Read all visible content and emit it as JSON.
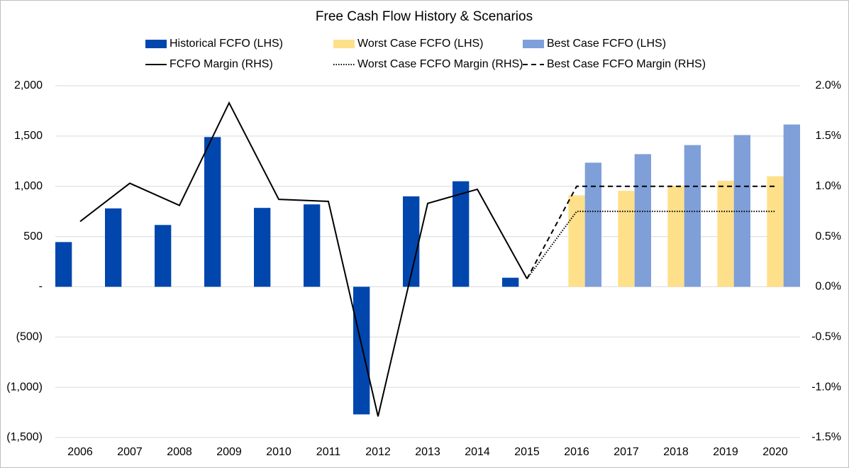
{
  "chart_data": {
    "type": "bar",
    "title": "Free Cash Flow History & Scenarios",
    "categories": [
      "2006",
      "2007",
      "2008",
      "2009",
      "2010",
      "2011",
      "2012",
      "2013",
      "2014",
      "2015",
      "2016",
      "2017",
      "2018",
      "2019",
      "2020"
    ],
    "series": [
      {
        "name": "Historical FCFO (LHS)",
        "type": "bar",
        "color": "#0046ad",
        "values": [
          445,
          780,
          615,
          1490,
          785,
          820,
          -1270,
          900,
          1050,
          90,
          null,
          null,
          null,
          null,
          null
        ]
      },
      {
        "name": "Worst Case FCFO (LHS)",
        "type": "bar",
        "color": "#ffe08a",
        "values": [
          null,
          null,
          null,
          null,
          null,
          null,
          null,
          null,
          null,
          null,
          910,
          955,
          1005,
          1055,
          1100
        ]
      },
      {
        "name": "Best Case FCFO (LHS)",
        "type": "bar",
        "color": "#7f9fd8",
        "values": [
          null,
          null,
          null,
          null,
          null,
          null,
          null,
          null,
          null,
          null,
          1235,
          1320,
          1410,
          1510,
          1615
        ]
      },
      {
        "name": "FCFO Margin (RHS)",
        "type": "line",
        "axis": "y2",
        "dash": "solid",
        "color": "#000000",
        "values": [
          0.65,
          1.03,
          0.81,
          1.83,
          0.87,
          0.85,
          -1.29,
          0.83,
          0.97,
          0.08,
          null,
          null,
          null,
          null,
          null
        ]
      },
      {
        "name": "Worst Case FCFO Margin (RHS)",
        "type": "line",
        "axis": "y2",
        "dash": "dotted",
        "color": "#000000",
        "values": [
          null,
          null,
          null,
          null,
          null,
          null,
          null,
          null,
          null,
          0.08,
          0.75,
          0.75,
          0.75,
          0.75,
          0.75
        ]
      },
      {
        "name": "Best Case FCFO Margin (RHS)",
        "type": "line",
        "axis": "y2",
        "dash": "dashed",
        "color": "#000000",
        "values": [
          null,
          null,
          null,
          null,
          null,
          null,
          null,
          null,
          null,
          0.08,
          1.0,
          1.0,
          1.0,
          1.0,
          1.0
        ]
      }
    ],
    "ylim": [
      -1500,
      2000
    ],
    "yticks": [
      {
        "value": -1500,
        "label": "(1,500)"
      },
      {
        "value": -1000,
        "label": "(1,000)"
      },
      {
        "value": -500,
        "label": "(500)"
      },
      {
        "value": 0,
        "label": "-"
      },
      500,
      {
        "value": 1000,
        "label": "1,000"
      },
      {
        "value": 1500,
        "label": "1,500"
      },
      {
        "value": 2000,
        "label": "2,000"
      }
    ],
    "y2lim": [
      -1.5,
      2.0
    ],
    "y2ticks": [
      {
        "value": -1.5,
        "label": "-1.5%"
      },
      {
        "value": -1.0,
        "label": "-1.0%"
      },
      {
        "value": -0.5,
        "label": "-0.5%"
      },
      {
        "value": 0,
        "label": "0.0%"
      },
      {
        "value": 0.5,
        "label": "0.5%"
      },
      {
        "value": 1.0,
        "label": "1.0%"
      },
      {
        "value": 1.5,
        "label": "1.5%"
      },
      {
        "value": 2.0,
        "label": "2.0%"
      }
    ],
    "grid": true
  }
}
